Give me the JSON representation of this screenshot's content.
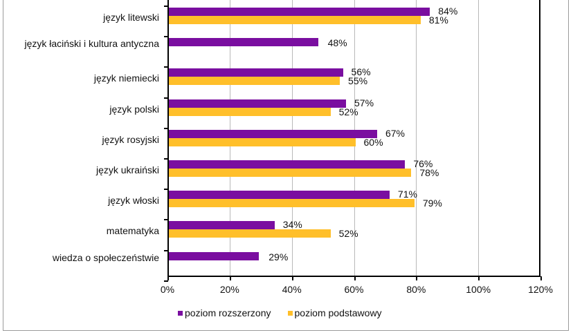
{
  "chart_data": {
    "type": "bar",
    "orientation": "horizontal",
    "title": "",
    "xlabel": "",
    "ylabel": "",
    "xlim": [
      0,
      120
    ],
    "x_ticks": [
      "0%",
      "20%",
      "40%",
      "60%",
      "80%",
      "100%",
      "120%"
    ],
    "grid": true,
    "legend_position": "bottom",
    "categories": [
      "język litewski",
      "język łaciński i kultura antyczna",
      "język niemiecki",
      "język polski",
      "język rosyjski",
      "język ukraiński",
      "język włoski",
      "matematyka",
      "wiedza o społeczeństwie"
    ],
    "series": [
      {
        "name": "poziom rozszerzony",
        "color": "#7a0ea0",
        "values": [
          84,
          48,
          56,
          57,
          67,
          76,
          71,
          34,
          29
        ]
      },
      {
        "name": "poziom podstawowy",
        "color": "#ffbf2a",
        "values": [
          81,
          null,
          55,
          52,
          60,
          78,
          79,
          52,
          null
        ]
      }
    ],
    "labels": {
      "rozszerzony": [
        "84%",
        "48%",
        "56%",
        "57%",
        "67%",
        "76%",
        "71%",
        "34%",
        "29%"
      ],
      "podstawowy": [
        "81%",
        "",
        "55%",
        "52%",
        "60%",
        "78%",
        "79%",
        "52%",
        ""
      ]
    }
  },
  "legend": {
    "item0": "poziom rozszerzony",
    "item1": "poziom podstawowy"
  }
}
